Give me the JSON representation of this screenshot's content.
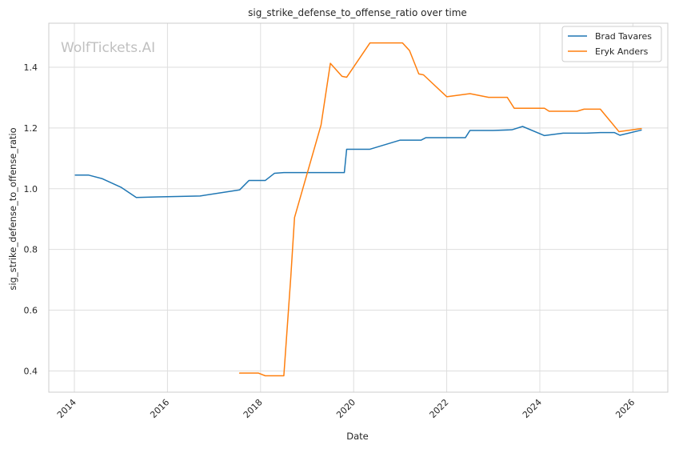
{
  "chart_data": {
    "type": "line",
    "title": "sig_strike_defense_to_offense_ratio over time",
    "xlabel": "Date",
    "ylabel": "sig_strike_defense_to_offense_ratio",
    "watermark": "WolfTickets.AI",
    "xlim": [
      2013.45,
      2026.75
    ],
    "ylim": [
      0.33,
      1.545
    ],
    "x_ticks": [
      2014,
      2016,
      2018,
      2020,
      2022,
      2024,
      2026
    ],
    "x_tick_labels": [
      "2014",
      "2016",
      "2018",
      "2020",
      "2022",
      "2024",
      "2026"
    ],
    "y_ticks": [
      0.4,
      0.6,
      0.8,
      1.0,
      1.2,
      1.4
    ],
    "y_tick_labels": [
      "0.4",
      "0.6",
      "0.8",
      "1.0",
      "1.2",
      "1.4"
    ],
    "grid": true,
    "legend_position": "top-right",
    "series": [
      {
        "name": "Brad Tavares",
        "color": "#1f77b4",
        "points": [
          [
            2014.02,
            1.045
          ],
          [
            2014.3,
            1.045
          ],
          [
            2014.6,
            1.033
          ],
          [
            2015.0,
            1.005
          ],
          [
            2015.33,
            0.971
          ],
          [
            2015.8,
            0.973
          ],
          [
            2016.7,
            0.976
          ],
          [
            2017.55,
            0.996
          ],
          [
            2017.75,
            1.027
          ],
          [
            2018.1,
            1.027
          ],
          [
            2018.3,
            1.051
          ],
          [
            2018.5,
            1.053
          ],
          [
            2019.3,
            1.053
          ],
          [
            2019.8,
            1.053
          ],
          [
            2019.85,
            1.13
          ],
          [
            2020.35,
            1.13
          ],
          [
            2021.0,
            1.16
          ],
          [
            2021.45,
            1.16
          ],
          [
            2021.55,
            1.168
          ],
          [
            2022.4,
            1.168
          ],
          [
            2022.5,
            1.192
          ],
          [
            2023.0,
            1.192
          ],
          [
            2023.4,
            1.194
          ],
          [
            2023.63,
            1.205
          ],
          [
            2024.1,
            1.175
          ],
          [
            2024.5,
            1.183
          ],
          [
            2025.0,
            1.183
          ],
          [
            2025.3,
            1.185
          ],
          [
            2025.6,
            1.185
          ],
          [
            2025.72,
            1.176
          ],
          [
            2026.18,
            1.193
          ]
        ]
      },
      {
        "name": "Eryk Anders",
        "color": "#ff7f0e",
        "points": [
          [
            2017.55,
            0.393
          ],
          [
            2017.95,
            0.393
          ],
          [
            2018.1,
            0.384
          ],
          [
            2018.5,
            0.384
          ],
          [
            2018.65,
            0.71
          ],
          [
            2018.73,
            0.905
          ],
          [
            2019.3,
            1.21
          ],
          [
            2019.5,
            1.413
          ],
          [
            2019.75,
            1.37
          ],
          [
            2019.85,
            1.367
          ],
          [
            2020.35,
            1.48
          ],
          [
            2021.05,
            1.48
          ],
          [
            2021.2,
            1.455
          ],
          [
            2021.4,
            1.378
          ],
          [
            2021.5,
            1.375
          ],
          [
            2022.0,
            1.303
          ],
          [
            2022.5,
            1.313
          ],
          [
            2022.9,
            1.301
          ],
          [
            2023.3,
            1.301
          ],
          [
            2023.45,
            1.265
          ],
          [
            2024.1,
            1.265
          ],
          [
            2024.2,
            1.255
          ],
          [
            2024.8,
            1.255
          ],
          [
            2024.95,
            1.262
          ],
          [
            2025.3,
            1.262
          ],
          [
            2025.7,
            1.188
          ],
          [
            2026.18,
            1.198
          ]
        ]
      }
    ]
  }
}
